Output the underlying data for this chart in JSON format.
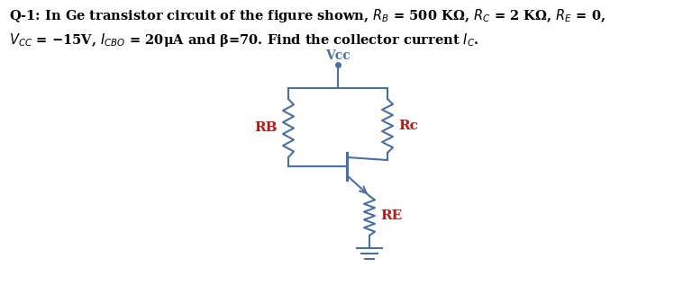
{
  "line1": "Q-1: In Ge transistor circuit of the figure shown, $R_B$ = 500 KΩ, $R_C$ = 2 KΩ, $R_E$ = 0,",
  "line2": "$V_{CC}$ = −15V, $I_{CBO}$ = 20μA and β=70. Find the collector current $I_C$.",
  "circuit_color": "#4a6fa5",
  "label_color": "#cc1111",
  "bg_color": "#ffffff",
  "RB_label": "RB",
  "RC_label": "Rc",
  "RE_label": "RE",
  "VCC_label": "Vcc",
  "text_fontsize": 10.5,
  "label_fontsize": 10,
  "lw": 1.5,
  "fig_w": 7.48,
  "fig_h": 3.17,
  "dpi": 100
}
